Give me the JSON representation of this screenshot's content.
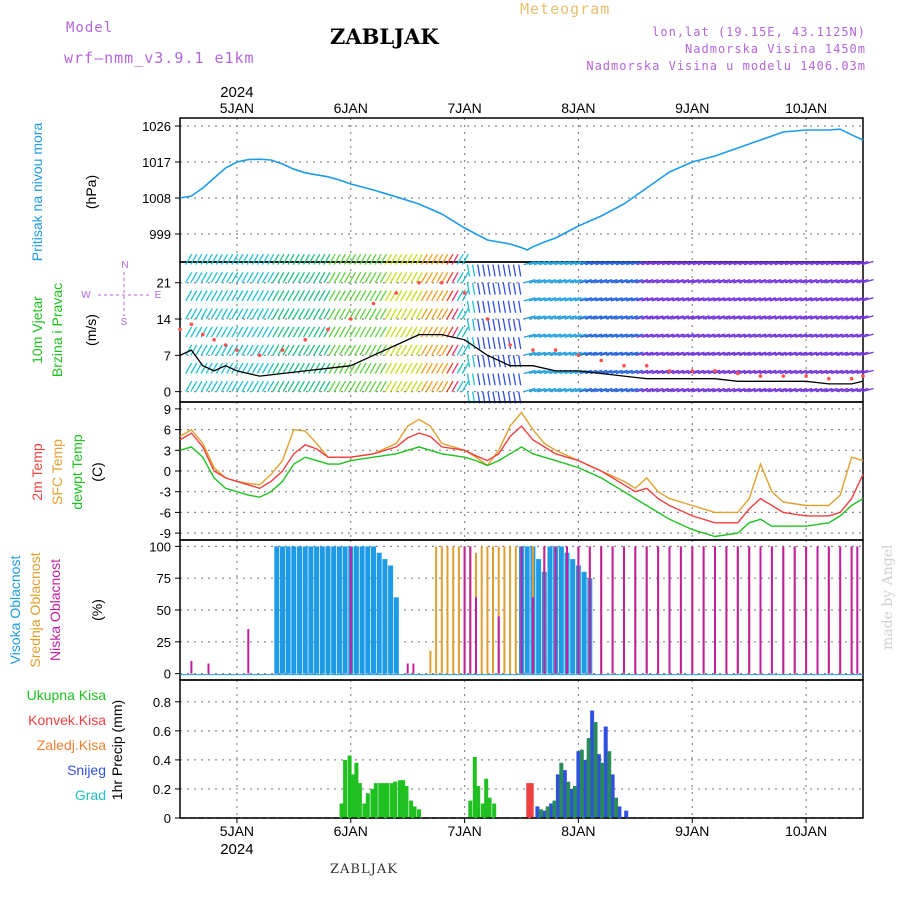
{
  "header": {
    "model_label": "Model",
    "model_name": "wrf–nmm_v3.9.1  e1km",
    "location": "ZABLJAK",
    "meteogram": "Meteogram",
    "lonlat": "lon,lat (19.15E, 43.1125N)",
    "elevation": "Nadmorska Visina 1450m",
    "model_elevation": "Nadmorska Visina u modelu 1406.03m"
  },
  "footer": {
    "location": "ZABLJAK",
    "credit": "made by Angel"
  },
  "time_axis": {
    "year": "2024",
    "days": [
      "5JAN",
      "6JAN",
      "7JAN",
      "8JAN",
      "9JAN",
      "10JAN"
    ],
    "start_day": 4.5,
    "end_day": 10.5
  },
  "colors": {
    "pressure": "#1e9be6",
    "t2m": "#f04040",
    "sfc": "#e0a030",
    "dewpt": "#20c020",
    "high_cloud": "#1e9be6",
    "mid_cloud": "#e0a030",
    "low_cloud": "#c020a0",
    "total_precip": "#20c020",
    "conv_precip": "#f04040",
    "frozen_precip": "#f08030",
    "snow": "#3050e0",
    "hail": "#20c0c0",
    "wind_speed": "#000000",
    "wind_gust": "#ff5050"
  },
  "chart_data": [
    {
      "type": "line",
      "panel": "pressure",
      "ylabel": [
        "Pritisak na nivou mora",
        "(hPa)"
      ],
      "yticks": [
        999,
        1008,
        1017,
        1026
      ],
      "ylim": [
        992,
        1028
      ],
      "x": [
        4.5,
        4.6,
        4.7,
        4.8,
        4.9,
        5.0,
        5.1,
        5.2,
        5.3,
        5.4,
        5.5,
        5.6,
        5.7,
        5.8,
        5.9,
        6.0,
        6.2,
        6.4,
        6.6,
        6.8,
        7.0,
        7.2,
        7.4,
        7.5,
        7.55,
        7.6,
        7.7,
        7.8,
        7.9,
        8.0,
        8.2,
        8.4,
        8.6,
        8.8,
        9.0,
        9.2,
        9.4,
        9.6,
        9.8,
        10.0,
        10.2,
        10.3,
        10.4,
        10.5
      ],
      "values": [
        1008.0,
        1008.5,
        1010.5,
        1013.0,
        1015.5,
        1017.0,
        1017.6,
        1017.7,
        1017.5,
        1016.5,
        1015.2,
        1014.3,
        1013.8,
        1013.3,
        1012.5,
        1011.5,
        1010.0,
        1008.3,
        1006.5,
        1004.0,
        1000.5,
        997.5,
        996.5,
        995.6,
        995.0,
        995.8,
        997.0,
        998.0,
        999.5,
        1001.0,
        1003.5,
        1006.5,
        1010.5,
        1014.5,
        1017.0,
        1018.5,
        1020.5,
        1022.5,
        1024.5,
        1025.0,
        1025.0,
        1025.2,
        1023.8,
        1022.5
      ]
    },
    {
      "type": "line",
      "panel": "wind",
      "ylabel": [
        "10m Vjetar",
        "Brzina i Pravac",
        "(m/s)"
      ],
      "compass": [
        "N",
        "E",
        "W",
        "S"
      ],
      "yticks": [
        0,
        7,
        14,
        21
      ],
      "ylim": [
        -2,
        25
      ],
      "series": [
        {
          "role": "speed",
          "x": [
            4.5,
            4.6,
            4.7,
            4.8,
            4.9,
            5.0,
            5.2,
            5.4,
            5.6,
            5.8,
            6.0,
            6.2,
            6.4,
            6.6,
            6.8,
            7.0,
            7.2,
            7.4,
            7.6,
            7.8,
            8.0,
            8.2,
            8.4,
            8.6,
            8.8,
            9.0,
            9.2,
            9.4,
            9.6,
            9.8,
            10.0,
            10.2,
            10.4,
            10.5
          ],
          "values": [
            7,
            8,
            5,
            4,
            5,
            4,
            3,
            3.5,
            4,
            4.5,
            5,
            7,
            9,
            11,
            11,
            10,
            7,
            5,
            5,
            4,
            4,
            3.5,
            3,
            2.5,
            2.5,
            2.5,
            2.5,
            2,
            2,
            2,
            2,
            1.5,
            1.5,
            2
          ]
        },
        {
          "role": "gust",
          "x": [
            4.5,
            4.6,
            4.7,
            4.8,
            4.9,
            5.0,
            5.2,
            5.4,
            5.6,
            5.8,
            6.0,
            6.2,
            6.4,
            6.6,
            6.8,
            7.0,
            7.2,
            7.4,
            7.6,
            7.8,
            8.0,
            8.2,
            8.4,
            8.6,
            8.8,
            9.0,
            9.2,
            9.4,
            9.6,
            9.8,
            10.0,
            10.2,
            10.4,
            10.5
          ],
          "values": [
            12,
            13,
            11,
            10,
            9,
            8,
            7,
            8,
            10,
            12,
            14,
            17,
            19,
            21,
            21,
            19,
            14,
            9,
            8,
            8,
            7,
            6,
            5,
            5,
            4,
            4,
            4,
            3.5,
            3,
            3,
            3,
            2.5,
            2.5,
            3
          ]
        }
      ]
    },
    {
      "type": "line",
      "panel": "temperature",
      "ylabel": [
        "2m Temp",
        "SFC Temp",
        "dewpt Temp",
        "(C)"
      ],
      "yticks": [
        -9,
        -6,
        -3,
        0,
        3,
        6,
        9
      ],
      "ylim": [
        -10,
        10
      ],
      "x": [
        4.5,
        4.6,
        4.7,
        4.8,
        4.9,
        5.0,
        5.1,
        5.2,
        5.3,
        5.4,
        5.5,
        5.6,
        5.7,
        5.8,
        5.9,
        6.0,
        6.2,
        6.4,
        6.5,
        6.6,
        6.7,
        6.8,
        7.0,
        7.1,
        7.2,
        7.3,
        7.4,
        7.5,
        7.6,
        7.7,
        7.8,
        8.0,
        8.2,
        8.4,
        8.5,
        8.6,
        8.7,
        8.8,
        9.0,
        9.2,
        9.4,
        9.5,
        9.6,
        9.7,
        9.8,
        10.0,
        10.2,
        10.3,
        10.4,
        10.5
      ],
      "series": [
        {
          "name": "2m Temp",
          "values": [
            4.5,
            5.5,
            3.5,
            0.0,
            -1.0,
            -1.5,
            -2.0,
            -2.5,
            -1.5,
            0.0,
            2.5,
            3.8,
            3.2,
            2.0,
            2.0,
            2.0,
            2.5,
            3.5,
            4.8,
            5.5,
            5.0,
            3.5,
            3.0,
            2.2,
            1.5,
            2.5,
            5.0,
            6.5,
            4.5,
            3.5,
            2.5,
            1.5,
            0.0,
            -2.0,
            -3.0,
            -2.5,
            -4.0,
            -5.0,
            -6.5,
            -7.5,
            -7.5,
            -5.5,
            -4.0,
            -5.0,
            -6.0,
            -6.5,
            -6.5,
            -6.0,
            -4.0,
            -0.5
          ]
        },
        {
          "name": "SFC Temp",
          "values": [
            5.0,
            6.0,
            4.0,
            0.5,
            -1.0,
            -1.5,
            -1.8,
            -2.0,
            -0.5,
            1.5,
            6.0,
            5.8,
            4.0,
            2.0,
            2.0,
            2.0,
            2.5,
            4.0,
            6.5,
            7.5,
            6.5,
            4.0,
            3.0,
            2.0,
            0.8,
            3.0,
            6.5,
            8.5,
            6.0,
            4.0,
            3.0,
            1.5,
            0.0,
            -1.5,
            -2.5,
            -1.0,
            -3.0,
            -4.0,
            -5.0,
            -6.0,
            -6.0,
            -4.0,
            1.0,
            -3.0,
            -4.5,
            -5.0,
            -5.0,
            -3.5,
            2.0,
            1.5
          ]
        },
        {
          "name": "dewpt Temp",
          "values": [
            3.0,
            3.5,
            2.0,
            -1.0,
            -2.5,
            -3.0,
            -3.5,
            -3.8,
            -3.0,
            -1.5,
            1.0,
            2.0,
            1.5,
            1.0,
            1.0,
            1.5,
            2.0,
            2.5,
            3.0,
            3.5,
            3.0,
            2.5,
            2.0,
            1.5,
            0.8,
            1.5,
            2.5,
            3.5,
            2.5,
            2.0,
            1.5,
            0.5,
            -1.0,
            -3.0,
            -4.0,
            -5.0,
            -6.0,
            -7.0,
            -8.5,
            -9.5,
            -9.0,
            -7.5,
            -7.0,
            -8.0,
            -8.0,
            -8.0,
            -7.5,
            -6.5,
            -5.0,
            -4.0
          ]
        }
      ]
    },
    {
      "type": "bar",
      "panel": "cloud",
      "ylabel": [
        "Visoka Oblacnost",
        "Srednja Oblacnost",
        "Niska Oblacnost",
        "(%)"
      ],
      "yticks": [
        0,
        25,
        50,
        75,
        100
      ],
      "ylim": [
        -5,
        105
      ],
      "series": [
        {
          "name": "Visoka Oblacnost",
          "x": [
            5.35,
            5.4,
            5.45,
            5.5,
            5.55,
            5.6,
            5.65,
            5.7,
            5.75,
            5.8,
            5.85,
            5.9,
            5.95,
            6.0,
            6.05,
            6.1,
            6.15,
            6.2,
            6.25,
            6.3,
            6.35,
            6.4,
            7.5,
            7.55,
            7.6,
            7.65,
            7.7,
            7.75,
            7.8,
            7.85,
            7.9,
            7.95,
            8.0,
            8.05,
            8.1
          ],
          "values": [
            100,
            100,
            100,
            100,
            100,
            100,
            100,
            100,
            100,
            100,
            100,
            100,
            100,
            100,
            100,
            100,
            100,
            100,
            95,
            90,
            85,
            60,
            100,
            100,
            100,
            90,
            80,
            100,
            100,
            100,
            95,
            90,
            85,
            80,
            75
          ]
        },
        {
          "name": "Srednja Oblacnost",
          "x": [
            6.7,
            6.75,
            6.8,
            6.85,
            6.9,
            6.95,
            7.0,
            7.05,
            7.1,
            7.15,
            7.2,
            7.25,
            7.3,
            7.35,
            7.4,
            7.45,
            7.5,
            7.6,
            7.7,
            7.8,
            7.9,
            8.0,
            8.1,
            8.2,
            8.3,
            8.4,
            8.5,
            8.6,
            8.7,
            8.8,
            8.9,
            9.0,
            9.1,
            9.2,
            9.3,
            9.4,
            9.5,
            9.6,
            9.7,
            9.8,
            9.9,
            10.0,
            10.1,
            10.2,
            10.3,
            10.4
          ],
          "values": [
            18,
            100,
            100,
            100,
            100,
            100,
            100,
            100,
            95,
            100,
            100,
            100,
            100,
            100,
            100,
            100,
            100,
            100,
            100,
            100,
            100,
            100,
            100,
            100,
            100,
            100,
            100,
            100,
            100,
            100,
            100,
            100,
            100,
            100,
            100,
            100,
            100,
            100,
            100,
            100,
            100,
            100,
            100,
            100,
            80,
            100
          ]
        },
        {
          "name": "Niska Oblacnost",
          "x": [
            4.6,
            4.75,
            5.1,
            6.0,
            6.5,
            6.55,
            7.0,
            7.05,
            7.1,
            7.3,
            7.5,
            7.6,
            7.7,
            7.8,
            7.9,
            8.0,
            8.1,
            8.2,
            8.3,
            8.4,
            8.5,
            8.6,
            8.7,
            8.8,
            8.9,
            9.0,
            9.1,
            9.2,
            9.3,
            9.4,
            9.5,
            9.6,
            9.7,
            9.8,
            9.9,
            10.0,
            10.1,
            10.2,
            10.3,
            10.4,
            10.45
          ],
          "values": [
            10,
            8,
            35,
            100,
            8,
            8,
            100,
            100,
            60,
            45,
            100,
            60,
            100,
            100,
            100,
            100,
            100,
            100,
            100,
            100,
            100,
            100,
            100,
            100,
            100,
            100,
            100,
            100,
            100,
            100,
            100,
            100,
            100,
            100,
            100,
            100,
            100,
            100,
            100,
            100,
            100
          ]
        }
      ]
    },
    {
      "type": "bar",
      "panel": "precip",
      "ylabel": [
        "1hr Precip (mm)"
      ],
      "legend": [
        "Ukupna Kisa",
        "Konvek.Kisa",
        "Zaledj.Kisa",
        "Snijeg",
        "Grad"
      ],
      "yticks": [
        0,
        0.2,
        0.4,
        0.6,
        0.8
      ],
      "ylim": [
        0,
        0.95
      ],
      "series": [
        {
          "name": "Ukupna Kisa",
          "x": [
            5.92,
            5.95,
            5.99,
            6.02,
            6.05,
            6.08,
            6.12,
            6.15,
            6.19,
            6.22,
            6.26,
            6.29,
            6.32,
            6.36,
            6.39,
            6.43,
            6.46,
            6.49,
            6.53,
            6.56,
            6.6,
            7.05,
            7.09,
            7.12,
            7.16,
            7.19,
            7.22,
            7.26
          ],
          "values": [
            0.1,
            0.4,
            0.43,
            0.3,
            0.38,
            0.24,
            0.1,
            0.17,
            0.2,
            0.24,
            0.24,
            0.24,
            0.24,
            0.24,
            0.25,
            0.26,
            0.26,
            0.22,
            0.12,
            0.08,
            0.06,
            0.12,
            0.42,
            0.22,
            0.1,
            0.27,
            0.14,
            0.1
          ]
        },
        {
          "name": "Konvek.Kisa",
          "x": [
            7.56,
            7.59
          ],
          "values": [
            0.24,
            0.24
          ]
        },
        {
          "name": "Snijeg",
          "x": [
            7.64,
            7.7,
            7.76,
            7.82,
            7.88,
            7.94,
            8.0,
            8.06,
            8.12,
            8.18,
            8.24,
            8.3,
            8.36,
            8.42
          ],
          "values": [
            0.08,
            0.05,
            0.1,
            0.3,
            0.33,
            0.2,
            0.46,
            0.4,
            0.74,
            0.44,
            0.63,
            0.3,
            0.08,
            0.05
          ]
        },
        {
          "name": "Grad",
          "x": [
            7.67,
            7.73,
            7.79,
            7.85,
            7.91,
            7.97,
            8.03,
            8.09,
            8.15,
            8.21,
            8.27,
            8.33
          ],
          "values": [
            0.06,
            0.08,
            0.12,
            0.38,
            0.25,
            0.22,
            0.47,
            0.55,
            0.66,
            0.38,
            0.46,
            0.14
          ]
        }
      ]
    }
  ]
}
